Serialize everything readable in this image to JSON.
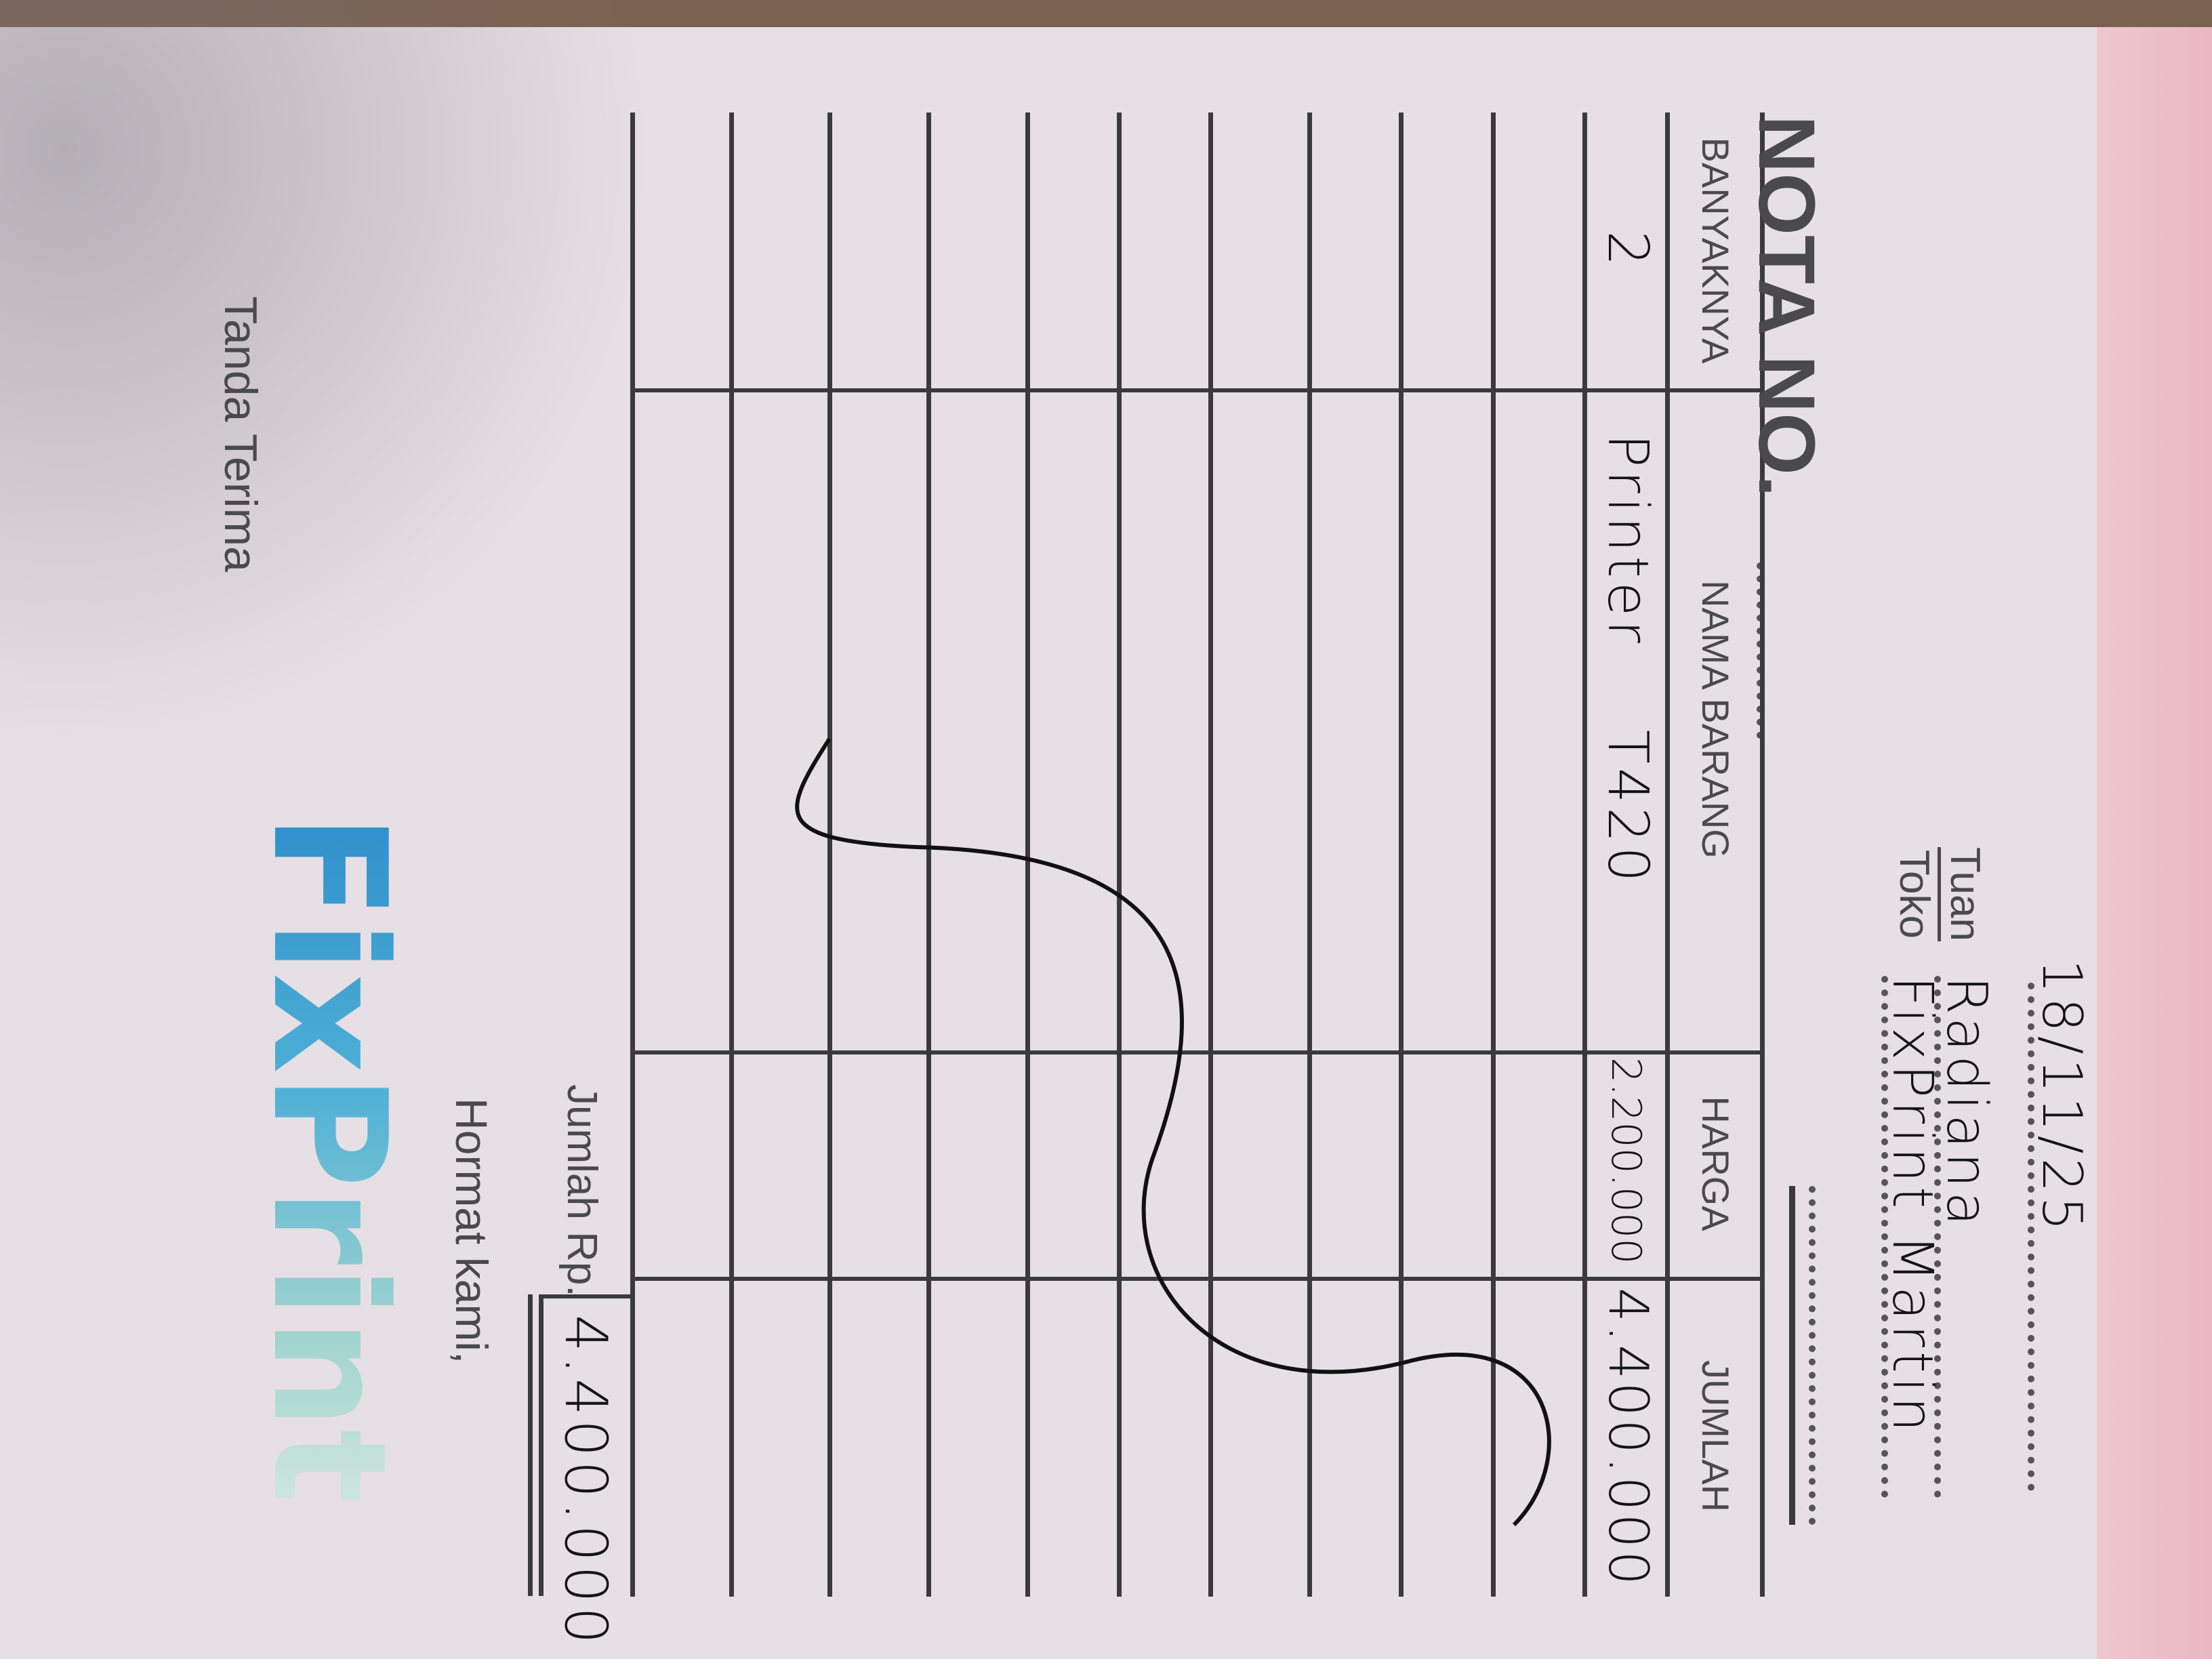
{
  "header": {
    "nota_label": "NOTA NO.",
    "date": "18/11/25",
    "tuan_label": "Tuan",
    "toko_label": "Toko",
    "tuan_value": "Radiana",
    "toko_value": "FixPrint Martin"
  },
  "table": {
    "columns": [
      "BANYAKNYA",
      "NAMA BARANG",
      "HARGA",
      "JUMLAH"
    ],
    "rows": [
      {
        "qty": "2",
        "item": "Printer T420",
        "harga": "2.200.000",
        "jumlah": "4.400.000"
      }
    ]
  },
  "footer": {
    "jumlah_label": "Jumlah Rp.",
    "total": "4.400.000",
    "hormat": "Hormat kami,",
    "tanda_terima": "Tanda Terima"
  },
  "logo": {
    "text": "FixPrint",
    "colors": [
      "#2f8fcc",
      "#9fd3cf"
    ]
  },
  "colors": {
    "paper": "#e6dfe4",
    "ink": "#141414",
    "print": "#4a4a4c",
    "page_edge": "#efc7cf"
  }
}
